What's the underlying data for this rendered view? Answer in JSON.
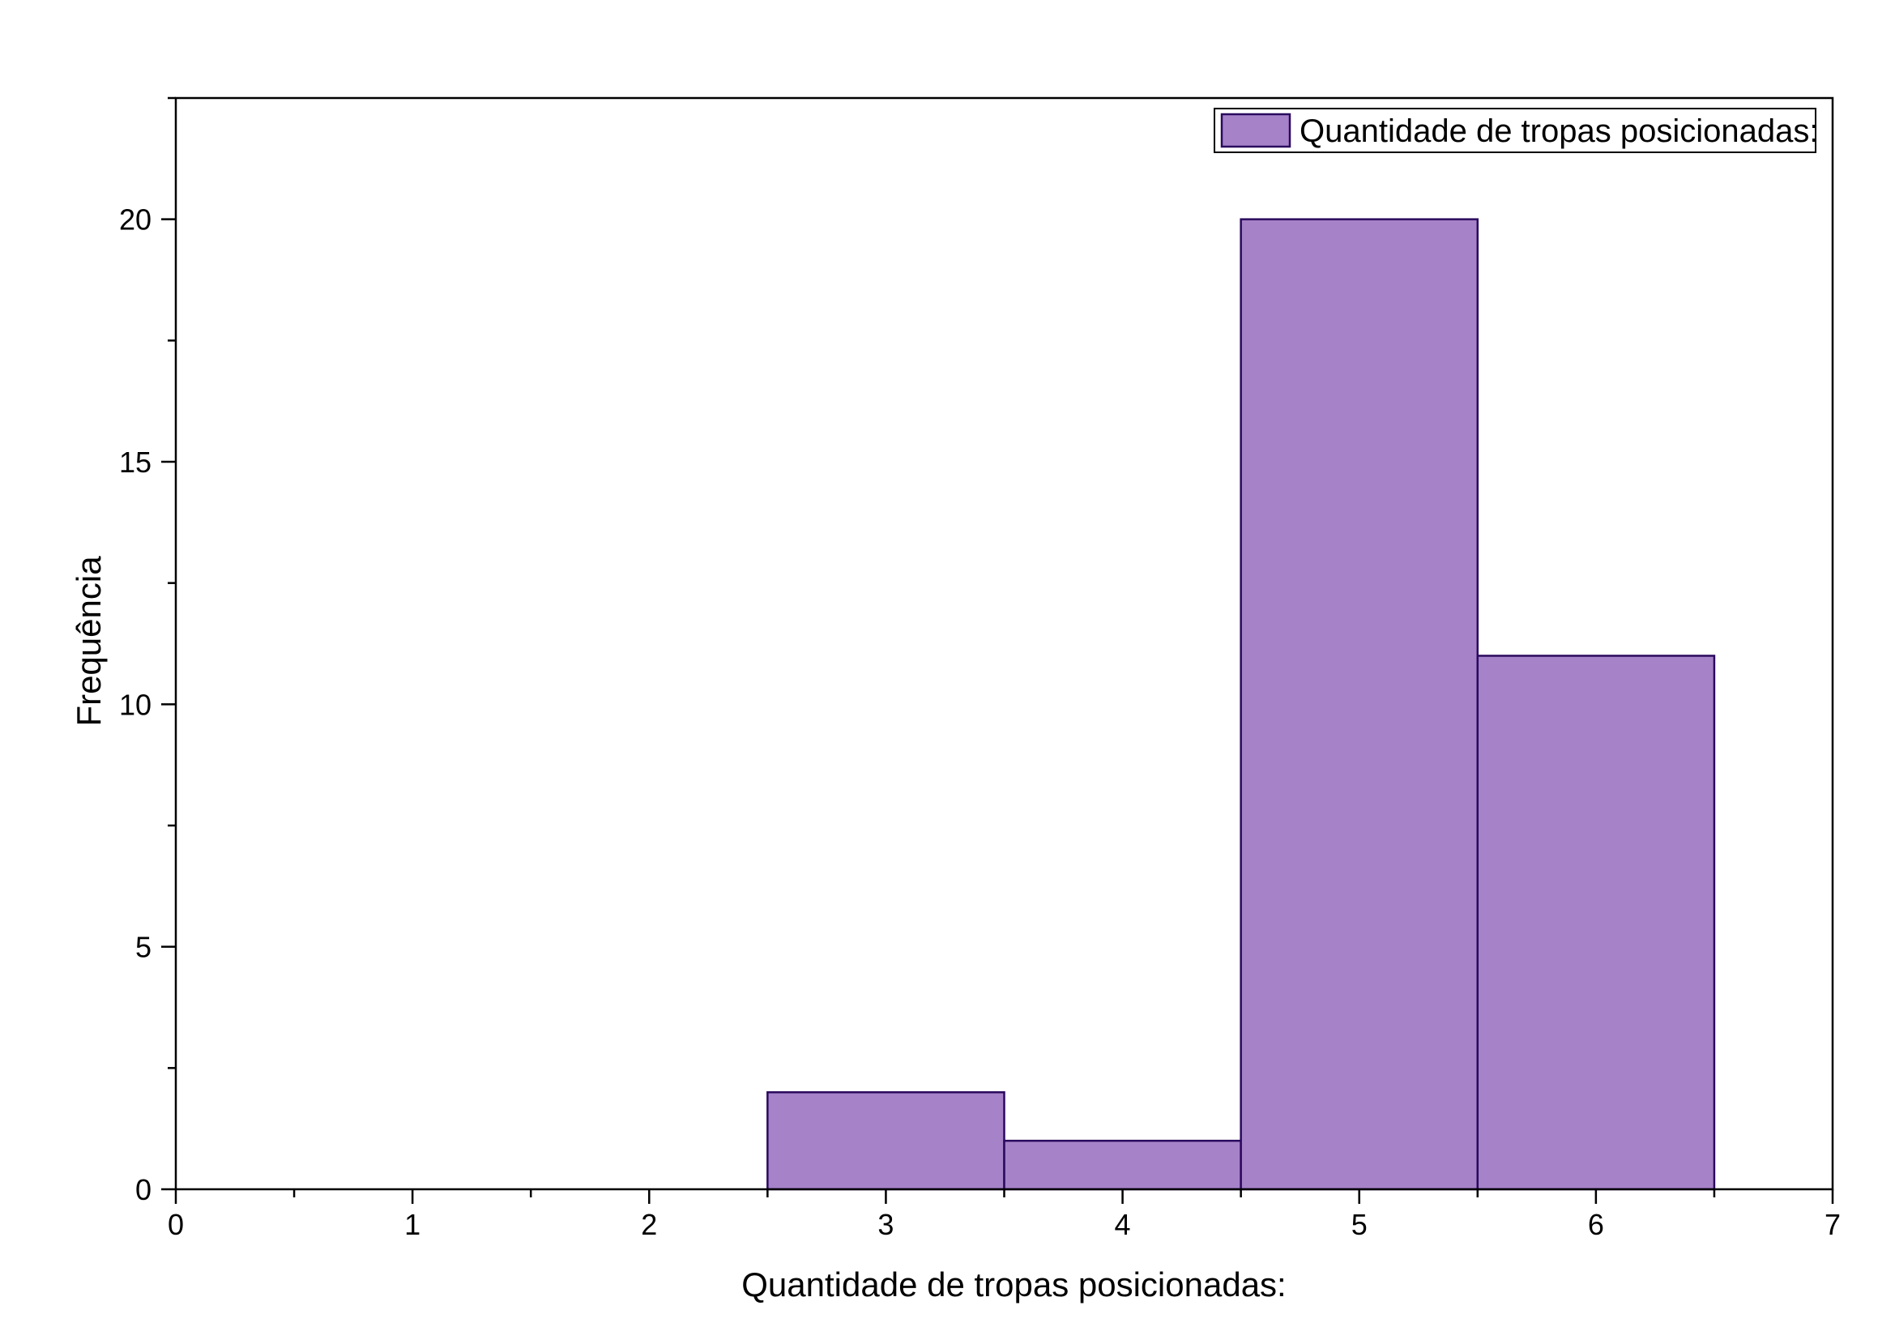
{
  "chart_data": {
    "type": "bar",
    "subtype": "histogram",
    "title": "",
    "xlabel": "Quantidade de tropas posicionadas:",
    "ylabel": "Frequência",
    "xlim": [
      0,
      7
    ],
    "ylim": [
      0,
      22.5
    ],
    "x_ticks": [
      0,
      1,
      2,
      3,
      4,
      5,
      6,
      7
    ],
    "x_tick_labels": [
      "0",
      "1",
      "2",
      "3",
      "4",
      "5",
      "6",
      "7"
    ],
    "y_ticks": [
      0,
      5,
      10,
      15,
      20
    ],
    "y_tick_labels": [
      "0",
      "5",
      "10",
      "15",
      "20"
    ],
    "bin_width": 1,
    "bins": [
      {
        "center": 3,
        "start": 2.5,
        "end": 3.5,
        "value": 2
      },
      {
        "center": 4,
        "start": 3.5,
        "end": 4.5,
        "value": 1
      },
      {
        "center": 5,
        "start": 4.5,
        "end": 5.5,
        "value": 20
      },
      {
        "center": 6,
        "start": 5.5,
        "end": 6.5,
        "value": 11
      }
    ],
    "series": [
      {
        "name": "Quantidade de tropas posicionadas:",
        "values": [
          2,
          1,
          20,
          11
        ]
      }
    ],
    "legend": {
      "position": "top-right",
      "entries": [
        "Quantidade de tropas posicionadas:"
      ]
    },
    "grid": false,
    "colors": {
      "bar_fill": "#a682c8",
      "bar_edge": "#2a0a5e",
      "axis": "#000000",
      "background": "#ffffff"
    }
  }
}
